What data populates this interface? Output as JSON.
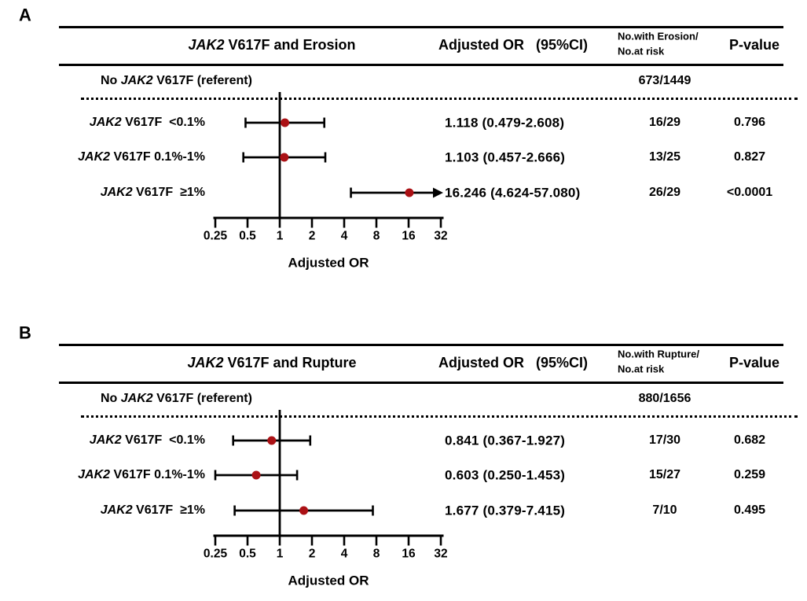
{
  "figure": {
    "colors": {
      "dot": "#ab1115",
      "line": "#000000",
      "text": "#000000"
    },
    "panels": [
      {
        "label": "A",
        "title_parts": [
          {
            "t": "JAK2",
            "i": true
          },
          {
            "t": " V617F and Erosion",
            "i": false
          }
        ],
        "headers": {
          "or": "Adjusted OR   (95%CI)",
          "count1": "No.with Erosion/",
          "count2": "No.at risk",
          "p": "P-value"
        },
        "referent_parts": [
          {
            "t": "No ",
            "i": false
          },
          {
            "t": "JAK2",
            "i": true
          },
          {
            "t": " V617F (referent)",
            "i": false
          }
        ],
        "row_label_parts": [
          [
            {
              "t": "JAK2",
              "i": true
            },
            {
              "t": " V617F  <0.1%",
              "i": false
            }
          ],
          [
            {
              "t": "JAK2",
              "i": true
            },
            {
              "t": " V617F 0.1%-1%",
              "i": false
            }
          ],
          [
            {
              "t": "JAK2",
              "i": true
            },
            {
              "t": " V617F  ≥1%",
              "i": false
            }
          ]
        ]
      },
      {
        "label": "B",
        "title_parts": [
          {
            "t": "JAK2",
            "i": true
          },
          {
            "t": " V617F and Rupture",
            "i": false
          }
        ],
        "headers": {
          "or": "Adjusted OR   (95%CI)",
          "count1": "No.with Rupture/",
          "count2": "No.at risk",
          "p": "P-value"
        },
        "referent_parts": [
          {
            "t": "No ",
            "i": false
          },
          {
            "t": "JAK2",
            "i": true
          },
          {
            "t": " V617F (referent)",
            "i": false
          }
        ],
        "row_label_parts": [
          [
            {
              "t": "JAK2",
              "i": true
            },
            {
              "t": " V617F  <0.1%",
              "i": false
            }
          ],
          [
            {
              "t": "JAK2",
              "i": true
            },
            {
              "t": " V617F 0.1%-1%",
              "i": false
            }
          ],
          [
            {
              "t": "JAK2",
              "i": true
            },
            {
              "t": " V617F  ≥1%",
              "i": false
            }
          ]
        ]
      }
    ]
  },
  "chart_data": [
    {
      "type": "forest",
      "title": "JAK2 V617F and Erosion",
      "xlabel": "Adjusted OR",
      "x_scale": "log2",
      "x_ticks": [
        0.25,
        0.5,
        1,
        2,
        4,
        8,
        16,
        32
      ],
      "x_range": [
        0.25,
        32
      ],
      "ref_line": 1,
      "referent": {
        "category": "No JAK2 V617F (referent)",
        "count": "673/1449"
      },
      "rows": [
        {
          "category": "JAK2 V617F <0.1%",
          "or": 1.118,
          "ci": [
            0.479,
            2.608
          ],
          "or_text": "1.118 (0.479-2.608)",
          "count": "16/29",
          "p": "0.796",
          "ci_exceeds_axis": false
        },
        {
          "category": "JAK2 V617F 0.1%-1%",
          "or": 1.103,
          "ci": [
            0.457,
            2.666
          ],
          "or_text": "1.103 (0.457-2.666)",
          "count": "13/25",
          "p": "0.827",
          "ci_exceeds_axis": false
        },
        {
          "category": "JAK2 V617F ≥1%",
          "or": 16.246,
          "ci": [
            4.624,
            57.08
          ],
          "or_text": "16.246 (4.624-57.080)",
          "count": "26/29",
          "p": "<0.0001",
          "ci_exceeds_axis": true
        }
      ]
    },
    {
      "type": "forest",
      "title": "JAK2 V617F and Rupture",
      "xlabel": "Adjusted OR",
      "x_scale": "log2",
      "x_ticks": [
        0.25,
        0.5,
        1,
        2,
        4,
        8,
        16,
        32
      ],
      "x_range": [
        0.25,
        32
      ],
      "ref_line": 1,
      "referent": {
        "category": "No JAK2 V617F (referent)",
        "count": "880/1656"
      },
      "rows": [
        {
          "category": "JAK2 V617F <0.1%",
          "or": 0.841,
          "ci": [
            0.367,
            1.927
          ],
          "or_text": "0.841 (0.367-1.927)",
          "count": "17/30",
          "p": "0.682",
          "ci_exceeds_axis": false
        },
        {
          "category": "JAK2 V617F 0.1%-1%",
          "or": 0.603,
          "ci": [
            0.25,
            1.453
          ],
          "or_text": "0.603 (0.250-1.453)",
          "count": "15/27",
          "p": "0.259",
          "ci_exceeds_axis": false
        },
        {
          "category": "JAK2 V617F ≥1%",
          "or": 1.677,
          "ci": [
            0.379,
            7.415
          ],
          "or_text": "1.677 (0.379-7.415)",
          "count": "7/10",
          "p": "0.495",
          "ci_exceeds_axis": false
        }
      ]
    }
  ]
}
